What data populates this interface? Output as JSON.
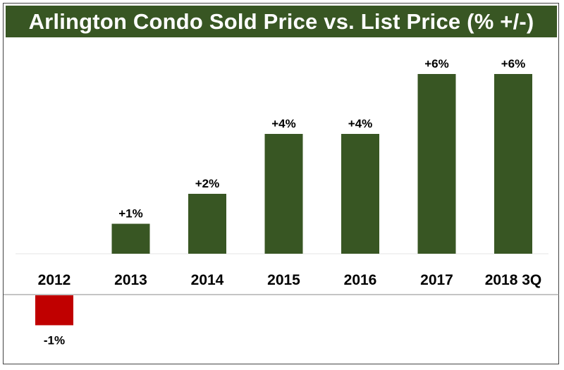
{
  "chart_data": {
    "type": "bar",
    "title": "Arlington Condo Sold Price vs. List Price (% +/-)",
    "categories": [
      "2012",
      "2013",
      "2014",
      "2015",
      "2016",
      "2017",
      "2018 3Q"
    ],
    "values": [
      -1,
      1,
      2,
      4,
      4,
      6,
      6
    ],
    "data_labels": [
      "-1%",
      "+1%",
      "+2%",
      "+4%",
      "+4%",
      "+6%",
      "+6%"
    ],
    "ylim": [
      -1.5,
      6.5
    ],
    "grid": false,
    "legend": "none",
    "colors": {
      "positive": "#385623",
      "negative": "#C00000",
      "title_bg": "#385623"
    }
  }
}
